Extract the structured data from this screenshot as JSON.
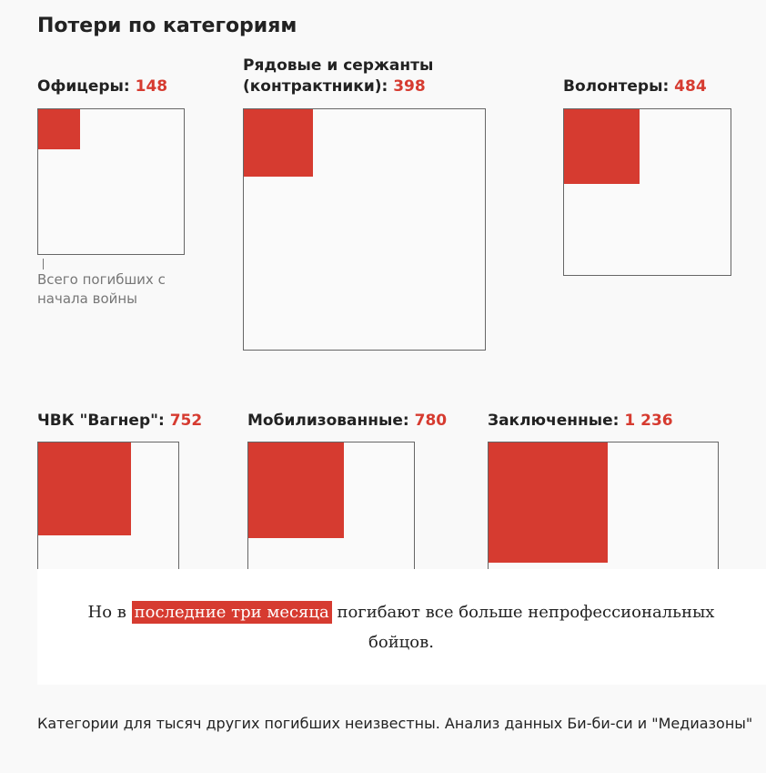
{
  "title": "Потери по категориям",
  "categories": [
    {
      "label": "Офицеры: ",
      "value_text": "148",
      "value": 148
    },
    {
      "label_line1": "Рядовые и сержанты",
      "label": "(контрактники): ",
      "value_text": "398",
      "value": 398
    },
    {
      "label": "Волонтеры: ",
      "value_text": "484",
      "value": 484
    },
    {
      "label": "ЧВК \"Вагнер\": ",
      "value_text": "752",
      "value": 752
    },
    {
      "label": "Мобилизованные: ",
      "value_text": "780",
      "value": 780
    },
    {
      "label": "Заключенные: ",
      "value_text": "1 236",
      "value": 1236
    }
  ],
  "legend_note": "Всего погибших с начала войны",
  "quote": {
    "before": "Но в ",
    "highlight": "последние три месяца",
    "after": " погибают все больше непрофессиональных бойцов."
  },
  "footer": "Категории для тысяч других погибших неизвестны. Анализ данных Би-би-си и \"Медиазоны\"",
  "colors": {
    "accent": "#d63b30"
  }
}
